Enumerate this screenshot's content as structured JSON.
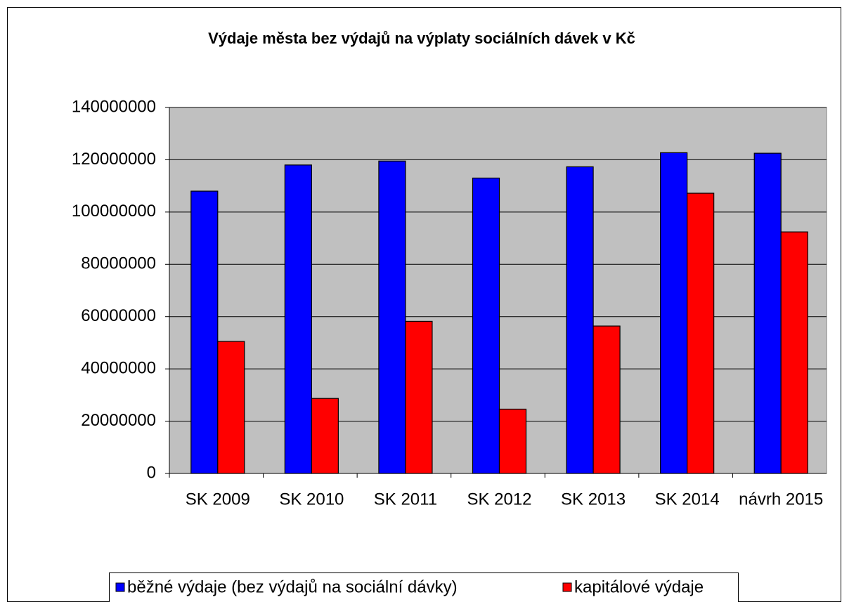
{
  "chart_data": {
    "type": "bar",
    "title": "Výdaje města bez výdajů  na výplaty sociálních dávek v Kč",
    "categories": [
      "SK 2009",
      "SK 2010",
      "SK 2011",
      "SK 2012",
      "SK 2013",
      "SK 2014",
      "návrh 2015"
    ],
    "series": [
      {
        "name": "běžné výdaje (bez výdajů na sociální dávky)",
        "color": "#0000ff",
        "values": [
          108000000,
          118000000,
          119500000,
          113000000,
          117300000,
          122700000,
          122500000
        ]
      },
      {
        "name": "kapitálové výdaje",
        "color": "#ff0000",
        "values": [
          50500000,
          28700000,
          58200000,
          24600000,
          56400000,
          107200000,
          92400000
        ]
      }
    ],
    "ylim": [
      0,
      140000000
    ],
    "yticks": [
      0,
      20000000,
      40000000,
      60000000,
      80000000,
      100000000,
      120000000,
      140000000
    ],
    "grid": true,
    "legend": "bottom"
  }
}
